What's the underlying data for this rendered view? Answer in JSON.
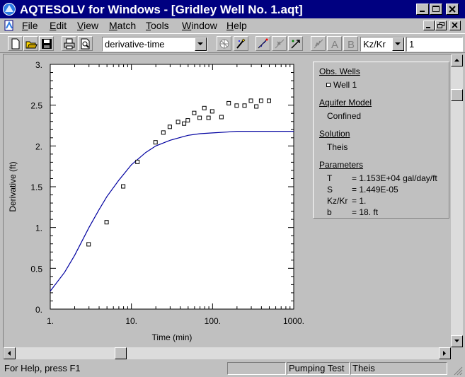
{
  "window": {
    "title": "AQTESOLV for Windows - [Gridley Well No. 1.aqt]"
  },
  "menu": {
    "items": [
      "File",
      "Edit",
      "View",
      "Match",
      "Tools",
      "Window",
      "Help"
    ],
    "accelerators": [
      "F",
      "E",
      "V",
      "M",
      "T",
      "W",
      "H"
    ]
  },
  "toolbar": {
    "plot_type": "derivative-time",
    "parameter_select": "Kz/Kr",
    "parameter_value": "1",
    "icons": [
      "new-icon",
      "open-icon",
      "save-icon",
      "print-icon",
      "print-preview-icon",
      "grid-icon",
      "wand-icon",
      "auto-match-icon",
      "visual-match-icon",
      "active-match-icon",
      "type-curve-icon",
      "a-icon",
      "b-icon"
    ]
  },
  "legend": {
    "obs_wells_heading": "Obs. Wells",
    "obs_well": "Well 1",
    "aquifer_model_heading": "Aquifer Model",
    "aquifer_model": "Confined",
    "solution_heading": "Solution",
    "solution": "Theis",
    "parameters_heading": "Parameters",
    "parameters": [
      {
        "name": "T",
        "value": "= 1.153E+04 gal/day/ft"
      },
      {
        "name": "S",
        "value": "= 1.449E-05"
      },
      {
        "name": "Kz/Kr",
        "value": "= 1."
      },
      {
        "name": "b",
        "value": "= 18. ft"
      }
    ]
  },
  "status": {
    "help": "For Help, press F1",
    "mode": "Pumping Test",
    "solution": "Theis"
  },
  "colors": {
    "title_bar": "#000080",
    "curve": "#0000a0",
    "face": "#c0c0c0"
  },
  "chart_data": {
    "type": "scatter",
    "xlabel": "Time (min)",
    "ylabel": "Derivative (ft)",
    "x_scale": "log",
    "xlim": [
      1,
      1000
    ],
    "ylim": [
      0,
      3
    ],
    "x_ticks": [
      1,
      10,
      100,
      1000
    ],
    "x_tick_labels": [
      "1.",
      "10.",
      "100.",
      "1000."
    ],
    "y_ticks": [
      0,
      0.5,
      1,
      1.5,
      2,
      2.5,
      3
    ],
    "y_tick_labels": [
      "0.",
      "0.5",
      "1.",
      "1.5",
      "2.",
      "2.5",
      "3."
    ],
    "grid": false,
    "observed": {
      "name": "Well 1",
      "x": [
        3,
        5,
        8,
        12,
        20,
        25,
        30,
        38,
        45,
        50,
        60,
        70,
        80,
        90,
        100,
        130,
        160,
        200,
        250,
        300,
        350,
        400,
        500
      ],
      "y": [
        0.79,
        1.06,
        1.5,
        1.8,
        2.04,
        2.16,
        2.23,
        2.29,
        2.27,
        2.31,
        2.4,
        2.34,
        2.46,
        2.34,
        2.42,
        2.35,
        2.52,
        2.49,
        2.49,
        2.55,
        2.48,
        2.55,
        2.55
      ]
    },
    "fitted": {
      "x": [
        1,
        1.5,
        2,
        3,
        4,
        5,
        7,
        10,
        15,
        20,
        30,
        50,
        70,
        100,
        150,
        200,
        300,
        500,
        700,
        1000
      ],
      "y": [
        0.22,
        0.45,
        0.66,
        1.0,
        1.22,
        1.38,
        1.58,
        1.77,
        1.92,
        2.0,
        2.07,
        2.13,
        2.15,
        2.16,
        2.17,
        2.18,
        2.18,
        2.18,
        2.18,
        2.18
      ]
    }
  }
}
